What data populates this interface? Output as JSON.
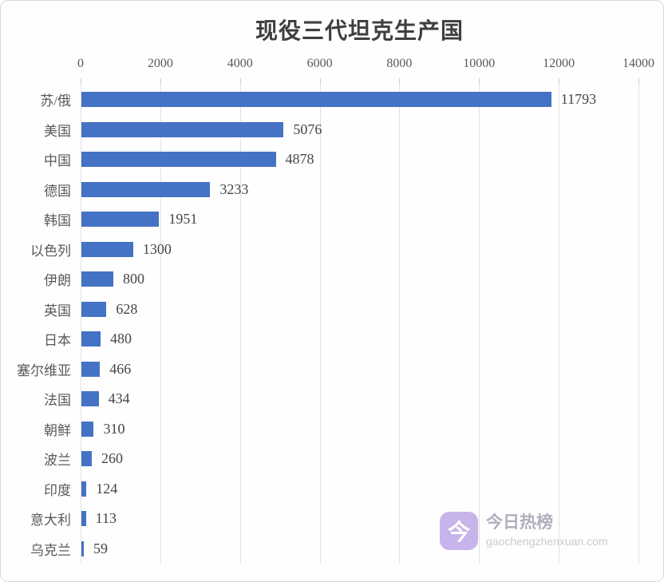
{
  "chart_data": {
    "type": "bar",
    "orientation": "horizontal",
    "title": "现役三代坦克生产国",
    "categories": [
      "苏/俄",
      "美国",
      "中国",
      "德国",
      "韩国",
      "以色列",
      "伊朗",
      "英国",
      "日本",
      "塞尔维亚",
      "法国",
      "朝鲜",
      "波兰",
      "印度",
      "意大利",
      "乌克兰"
    ],
    "values": [
      11793,
      5076,
      4878,
      3233,
      1951,
      1300,
      800,
      628,
      480,
      466,
      434,
      310,
      260,
      124,
      113,
      59
    ],
    "axis_ticks": [
      0,
      2000,
      4000,
      6000,
      8000,
      10000,
      12000,
      14000
    ],
    "xlim": [
      0,
      14000
    ],
    "axis_position": "top",
    "grid": true,
    "data_labels": true,
    "bar_color": "#4472C4",
    "gridline_color": "#e2e2e2"
  },
  "watermark": {
    "icon_char": "今",
    "brand": "今日热榜",
    "domain": "gaochengzhenxuan.com",
    "icon_color": "#c7b4ea"
  }
}
